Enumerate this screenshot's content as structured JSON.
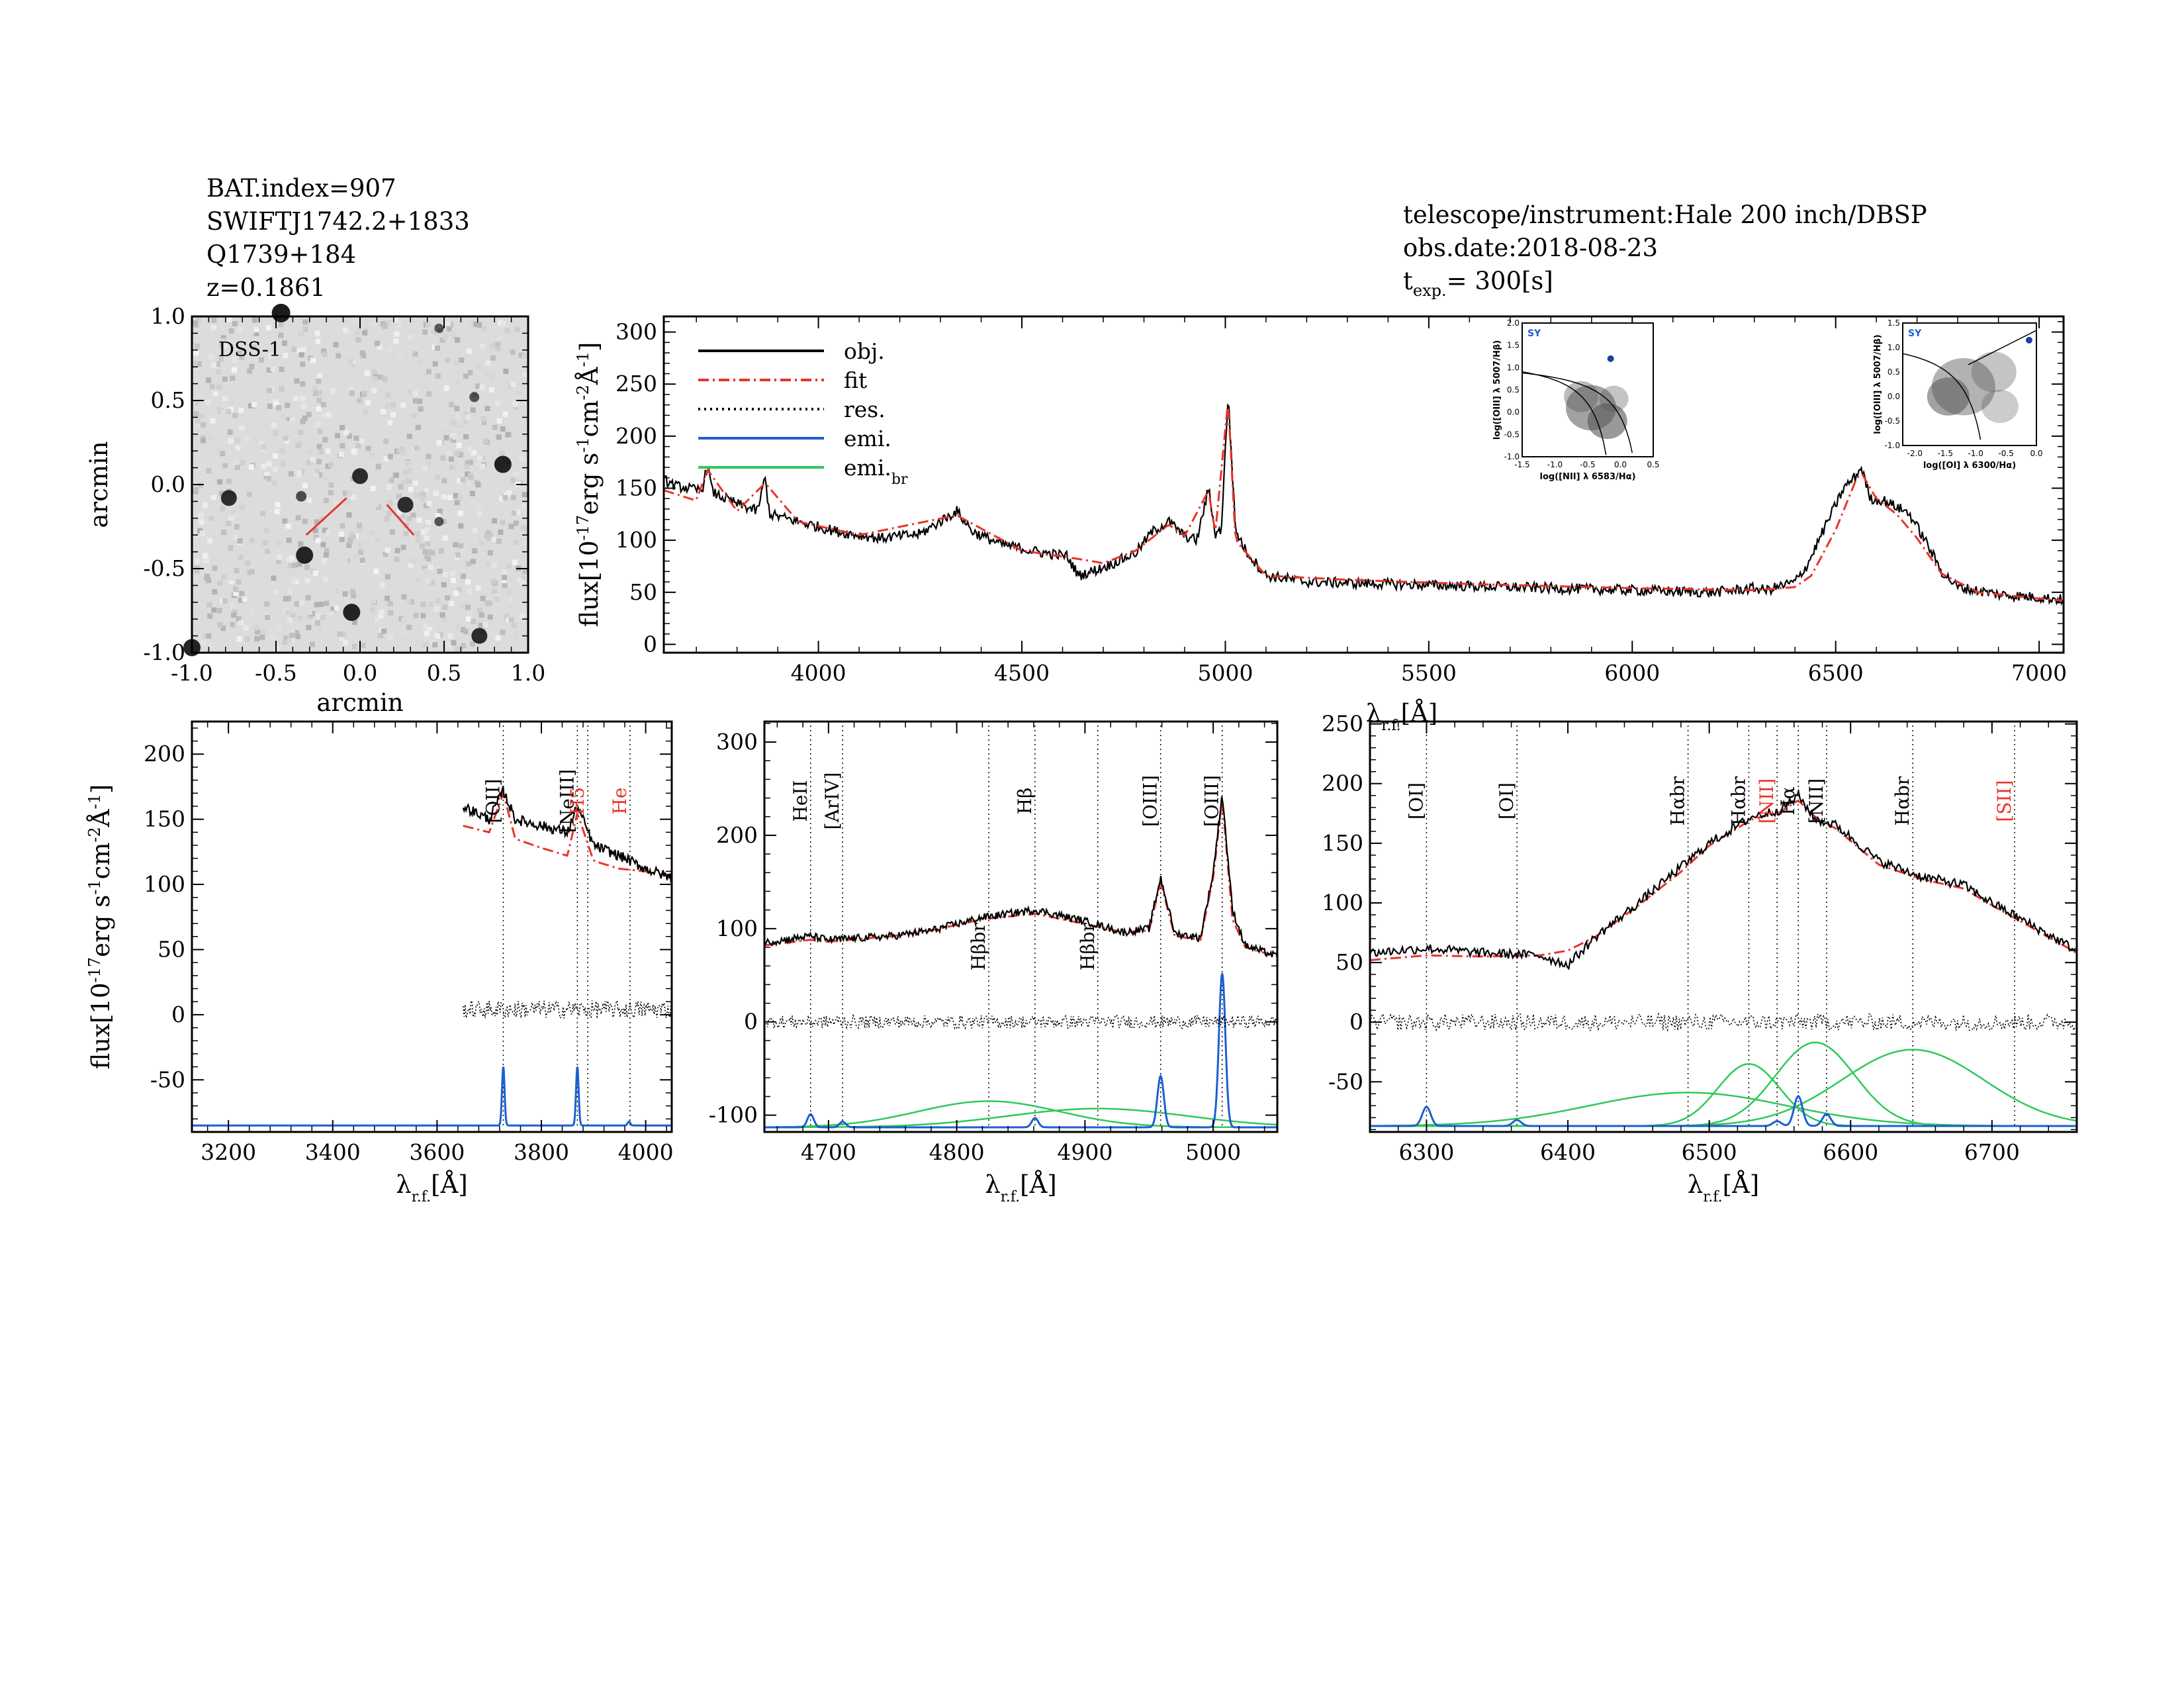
{
  "header_left": {
    "bat_index": "BAT.index=907",
    "swift_name": "SWIFTJ1742.2+1833",
    "counterpart": "Q1739+184",
    "redshift": "z=0.1861"
  },
  "header_right": {
    "telescope": "telescope/instrument:Hale 200 inch/DBSP",
    "obs_date": "obs.date:2018-08-23",
    "texp_prefix": "t",
    "texp_sub": "exp.",
    "texp_value": "=  300[s]"
  },
  "colors": {
    "obj": "#000000",
    "fit": "#e8342b",
    "res": "#000000",
    "emi": "#1c5fd1",
    "emi_br": "#2ec95a",
    "line_marker_red": "#e8342b"
  },
  "chart_data": [
    {
      "type": "image",
      "panel": "dss",
      "label": "DSS-1",
      "xlabel": "arcmin",
      "ylabel": "arcmin",
      "xlim": [
        -1.0,
        1.0
      ],
      "ylim": [
        -1.0,
        1.0
      ],
      "xticks": [
        -1.0,
        -0.5,
        0.0,
        0.5,
        1.0
      ],
      "yticks": [
        -1.0,
        -0.5,
        0.0,
        0.5,
        1.0
      ],
      "sources": [
        {
          "x": -0.47,
          "y": 1.02,
          "s": 1.0
        },
        {
          "x": -0.78,
          "y": -0.08,
          "s": 0.8
        },
        {
          "x": -0.33,
          "y": -0.42,
          "s": 0.9
        },
        {
          "x": 0.0,
          "y": 0.05,
          "s": 0.8
        },
        {
          "x": 0.27,
          "y": -0.12,
          "s": 0.8
        },
        {
          "x": -0.05,
          "y": -0.76,
          "s": 0.9
        },
        {
          "x": 0.85,
          "y": 0.12,
          "s": 0.9
        },
        {
          "x": 0.71,
          "y": -0.9,
          "s": 0.8
        },
        {
          "x": -1.0,
          "y": -0.97,
          "s": 0.9
        },
        {
          "x": -0.35,
          "y": -0.07,
          "s": 0.4
        },
        {
          "x": 0.68,
          "y": 0.52,
          "s": 0.35
        },
        {
          "x": 0.47,
          "y": -0.22,
          "s": 0.3
        },
        {
          "x": 0.47,
          "y": 0.93,
          "s": 0.3
        }
      ]
    },
    {
      "type": "line",
      "panel": "main",
      "xlabel": "λr.f.[Å]",
      "ylabel": "flux[10⁻¹⁷erg s⁻¹cm⁻²Å⁻¹]",
      "xlim": [
        3620,
        7060
      ],
      "ylim": [
        -8,
        315
      ],
      "xticks": [
        4000,
        4500,
        5000,
        5500,
        6000,
        6500,
        7000
      ],
      "yticks": [
        0,
        50,
        100,
        150,
        200,
        250,
        300
      ],
      "legend_position": "top-left",
      "legend": [
        {
          "label": "obj.",
          "style": "solid",
          "color": "#000000"
        },
        {
          "label": "fit",
          "style": "dashdot",
          "color": "#e8342b"
        },
        {
          "label": "res.",
          "style": "dotted",
          "color": "#000000"
        },
        {
          "label": "emi.",
          "style": "solid",
          "color": "#1c5fd1"
        },
        {
          "label": "emi.",
          "sub": "br",
          "style": "solid",
          "color": "#2ec95a"
        }
      ],
      "series": [
        {
          "name": "obj.",
          "x": [
            3620,
            3650,
            3680,
            3700,
            3715,
            3727,
            3740,
            3760,
            3800,
            3850,
            3869,
            3880,
            3950,
            4050,
            4150,
            4250,
            4340,
            4380,
            4450,
            4550,
            4610,
            4640,
            4686,
            4720,
            4780,
            4820,
            4861,
            4900,
            4930,
            4959,
            4975,
            4990,
            5007,
            5025,
            5050,
            5100,
            5200,
            5400,
            5600,
            5800,
            6000,
            6200,
            6300,
            6330,
            6400,
            6430,
            6480,
            6520,
            6550,
            6563,
            6585,
            6620,
            6680,
            6720,
            6760,
            6800,
            6900,
            7000,
            7060
          ],
          "y": [
            158,
            152,
            150,
            148,
            150,
            172,
            146,
            142,
            135,
            128,
            160,
            125,
            118,
            108,
            102,
            106,
            128,
            108,
            96,
            88,
            85,
            66,
            72,
            77,
            88,
            108,
            118,
            104,
            100,
            150,
            106,
            110,
            240,
            110,
            90,
            66,
            60,
            58,
            56,
            54,
            52,
            50,
            54,
            52,
            60,
            76,
            118,
            150,
            162,
            170,
            140,
            138,
            126,
            100,
            70,
            55,
            48,
            45,
            43
          ]
        },
        {
          "name": "fit",
          "x": [
            3620,
            3700,
            3727,
            3800,
            3869,
            3950,
            4100,
            4340,
            4500,
            4640,
            4700,
            4780,
            4861,
            4900,
            4959,
            4975,
            5007,
            5025,
            5100,
            5300,
            5600,
            6000,
            6300,
            6400,
            6440,
            6500,
            6550,
            6563,
            6600,
            6650,
            6700,
            6760,
            6850,
            7000,
            7060
          ],
          "y": [
            148,
            138,
            168,
            128,
            155,
            118,
            105,
            124,
            90,
            82,
            78,
            90,
            115,
            104,
            148,
            106,
            235,
            100,
            66,
            62,
            58,
            54,
            52,
            55,
            66,
            110,
            158,
            165,
            140,
            125,
            102,
            68,
            50,
            44,
            42
          ]
        }
      ],
      "inset_plots": [
        {
          "type": "scatter",
          "name": "BPT [NII]",
          "label": "SY",
          "xlabel": "log([NII] λ 6583/Hα)",
          "ylabel": "log([OIII] λ 5007/Hβ)",
          "xlim": [
            -1.5,
            0.5
          ],
          "ylim": [
            -1.0,
            2.0
          ],
          "xticks": [
            -1.5,
            -1.0,
            -0.5,
            0.0,
            0.5
          ],
          "yticks": [
            -1.0,
            -0.5,
            0.0,
            0.5,
            1.0,
            1.5,
            2.0
          ],
          "point": {
            "x": -0.15,
            "y": 1.2
          }
        },
        {
          "type": "scatter",
          "name": "BPT [OI]",
          "label": "SY",
          "xlabel": "log([OI] λ 6300/Hα)",
          "ylabel": "log([OIII] λ 5007/Hβ)",
          "xlim": [
            -2.2,
            0.0
          ],
          "ylim": [
            -1.0,
            1.5
          ],
          "xticks": [
            -2.0,
            -1.5,
            -1.0,
            -0.5,
            0.0
          ],
          "yticks": [
            -1.0,
            -0.5,
            0.0,
            0.5,
            1.0,
            1.5
          ],
          "point": {
            "x": -0.12,
            "y": 1.15
          }
        }
      ]
    },
    {
      "type": "line",
      "panel": "OII",
      "xlabel": "λr.f.[Å]",
      "ylabel": "flux[10⁻¹⁷erg s⁻¹cm⁻²Å⁻¹]",
      "xlim": [
        3130,
        4050
      ],
      "ylim": [
        -90,
        225
      ],
      "xticks": [
        3200,
        3400,
        3600,
        3800,
        4000
      ],
      "yticks": [
        -50,
        0,
        50,
        100,
        150,
        200
      ],
      "line_markers": [
        {
          "label": "[OII]",
          "x": 3727,
          "color": "#000000"
        },
        {
          "label": "[NeIII]",
          "x": 3869,
          "color": "#000000"
        },
        {
          "label": "H5",
          "x": 3889,
          "color": "#e8342b"
        },
        {
          "label": "He",
          "x": 3970,
          "color": "#e8342b"
        }
      ],
      "obj": {
        "x": [
          3650,
          3700,
          3727,
          3750,
          3800,
          3850,
          3869,
          3900,
          3950,
          4000,
          4050
        ],
        "y": [
          160,
          150,
          172,
          150,
          145,
          140,
          160,
          130,
          122,
          112,
          105
        ]
      },
      "fit": {
        "x": [
          3650,
          3700,
          3727,
          3750,
          3800,
          3850,
          3869,
          3900,
          3950,
          4000,
          4050
        ],
        "y": [
          145,
          140,
          170,
          135,
          128,
          122,
          155,
          118,
          112,
          110,
          106
        ]
      },
      "res_range": [
        3650,
        4050
      ],
      "emi": [
        {
          "center": 3727,
          "amp": 45,
          "sigma": 2.5
        },
        {
          "center": 3869,
          "amp": 45,
          "sigma": 2.5
        },
        {
          "center": 3968,
          "amp": 3,
          "sigma": 2.5
        }
      ],
      "emi_br": []
    },
    {
      "type": "line",
      "panel": "Hbeta",
      "xlabel": "λr.f.[Å]",
      "ylabel": "",
      "xlim": [
        4650,
        5050
      ],
      "ylim": [
        -118,
        322
      ],
      "xticks": [
        4700,
        4800,
        4900,
        5000
      ],
      "yticks": [
        -100,
        0,
        100,
        200,
        300
      ],
      "line_markers": [
        {
          "label": "HeII",
          "x": 4686,
          "color": "#000000",
          "pos": "top"
        },
        {
          "label": "[ArIV]",
          "x": 4711,
          "color": "#000000",
          "pos": "top"
        },
        {
          "label": "Hβbr",
          "x": 4825,
          "color": "#000000",
          "pos": "bottom"
        },
        {
          "label": "Hβ",
          "x": 4861,
          "color": "#000000",
          "pos": "top"
        },
        {
          "label": "Hβbr",
          "x": 4910,
          "color": "#000000",
          "pos": "bottom"
        },
        {
          "label": "[OIII]",
          "x": 4959,
          "color": "#000000",
          "pos": "top"
        },
        {
          "label": "[OIII]",
          "x": 5007,
          "color": "#000000",
          "pos": "top"
        }
      ],
      "obj": {
        "x": [
          4650,
          4686,
          4700,
          4750,
          4780,
          4820,
          4861,
          4900,
          4930,
          4950,
          4959,
          4970,
          4990,
          5000,
          5007,
          5015,
          5025,
          5050
        ],
        "y": [
          85,
          92,
          88,
          92,
          98,
          112,
          120,
          108,
          96,
          100,
          155,
          95,
          90,
          160,
          245,
          120,
          82,
          70
        ]
      },
      "fit": {
        "x": [
          4650,
          4686,
          4700,
          4750,
          4780,
          4820,
          4861,
          4900,
          4930,
          4950,
          4959,
          4970,
          4990,
          5000,
          5007,
          5015,
          5025,
          5050
        ],
        "y": [
          82,
          88,
          86,
          92,
          98,
          110,
          116,
          105,
          96,
          98,
          150,
          92,
          88,
          155,
          240,
          110,
          80,
          70
        ]
      },
      "res_range": [
        4650,
        5050
      ],
      "emi": [
        {
          "center": 4686,
          "amp": 14,
          "sigma": 2.5
        },
        {
          "center": 4711,
          "amp": 6,
          "sigma": 2.5
        },
        {
          "center": 4861,
          "amp": 10,
          "sigma": 2.5
        },
        {
          "center": 4959,
          "amp": 55,
          "sigma": 2.5
        },
        {
          "center": 5007,
          "amp": 165,
          "sigma": 2.5
        }
      ],
      "emi_br": [
        {
          "center": 4825,
          "amp": 28,
          "sigma": 55
        },
        {
          "center": 4910,
          "amp": 20,
          "sigma": 70
        }
      ]
    },
    {
      "type": "line",
      "panel": "Halpha",
      "xlabel": "λr.f.[Å]",
      "ylabel": "",
      "xlim": [
        6260,
        6760
      ],
      "ylim": [
        -92,
        252
      ],
      "xticks": [
        6300,
        6400,
        6500,
        6600,
        6700
      ],
      "yticks": [
        -50,
        0,
        50,
        100,
        150,
        200,
        250
      ],
      "line_markers": [
        {
          "label": "[OI]",
          "x": 6300,
          "color": "#000000"
        },
        {
          "label": "[OI]",
          "x": 6364,
          "color": "#000000"
        },
        {
          "label": "Hαbr",
          "x": 6485,
          "color": "#000000"
        },
        {
          "label": "Hαbr",
          "x": 6528,
          "color": "#000000"
        },
        {
          "label": "[NII]",
          "x": 6548,
          "color": "#e8342b"
        },
        {
          "label": "Hα",
          "x": 6563,
          "color": "#000000"
        },
        {
          "label": "[NII]",
          "x": 6583,
          "color": "#000000"
        },
        {
          "label": "Hαbr",
          "x": 6644,
          "color": "#000000"
        },
        {
          "label": "[SII]",
          "x": 6716,
          "color": "#e8342b"
        }
      ],
      "obj": {
        "x": [
          6260,
          6300,
          6340,
          6380,
          6400,
          6420,
          6450,
          6480,
          6500,
          6530,
          6550,
          6563,
          6575,
          6590,
          6620,
          6650,
          6680,
          6700,
          6730,
          6760
        ],
        "y": [
          58,
          62,
          58,
          56,
          48,
          72,
          100,
          130,
          150,
          172,
          178,
          190,
          170,
          165,
          135,
          122,
          115,
          100,
          80,
          60
        ]
      },
      "fit": {
        "x": [
          6260,
          6300,
          6340,
          6380,
          6400,
          6420,
          6450,
          6480,
          6500,
          6530,
          6550,
          6563,
          6575,
          6590,
          6620,
          6650,
          6680,
          6700,
          6730,
          6760
        ],
        "y": [
          52,
          56,
          55,
          56,
          60,
          72,
          98,
          126,
          148,
          170,
          176,
          186,
          172,
          162,
          132,
          120,
          112,
          98,
          78,
          58
        ]
      },
      "res_range": [
        6260,
        6760
      ],
      "emi": [
        {
          "center": 6300,
          "amp": 16,
          "sigma": 3
        },
        {
          "center": 6364,
          "amp": 5,
          "sigma": 3
        },
        {
          "center": 6548,
          "amp": 4,
          "sigma": 3
        },
        {
          "center": 6563,
          "amp": 25,
          "sigma": 3
        },
        {
          "center": 6583,
          "amp": 10,
          "sigma": 3
        }
      ],
      "emi_br": [
        {
          "center": 6485,
          "amp": 28,
          "sigma": 70
        },
        {
          "center": 6528,
          "amp": 52,
          "sigma": 22
        },
        {
          "center": 6575,
          "amp": 70,
          "sigma": 28
        },
        {
          "center": 6644,
          "amp": 64,
          "sigma": 50
        }
      ]
    }
  ]
}
